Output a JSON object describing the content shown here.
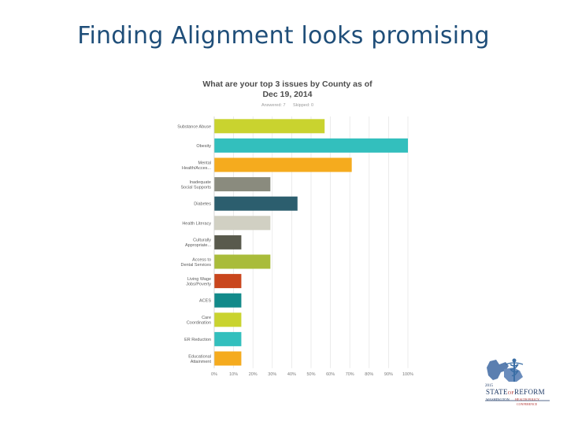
{
  "slide": {
    "title": "Finding Alignment looks promising"
  },
  "chart_data": {
    "type": "bar",
    "orientation": "horizontal",
    "title_lines": [
      "What are your top 3 issues by County as of",
      "Dec 19, 2014"
    ],
    "answered_label": "Answered: 7",
    "skipped_label": "Skipped: 0",
    "categories": [
      [
        "Substance Abuse"
      ],
      [
        "Obesity"
      ],
      [
        "Mental",
        "Health/Acces..."
      ],
      [
        "Inadequate",
        "Social Supports"
      ],
      [
        "Diabetes"
      ],
      [
        "Health Literacy"
      ],
      [
        "Culturally",
        "Appropriate..."
      ],
      [
        "Access to",
        "Dental Services"
      ],
      [
        "Living Wage",
        "Jobs/Poverty"
      ],
      [
        "ACES"
      ],
      [
        "Care",
        "Coordination"
      ],
      [
        "ER Reduction"
      ],
      [
        "Educational",
        "Attainment"
      ]
    ],
    "values": [
      57,
      100,
      71,
      29,
      43,
      29,
      14,
      29,
      14,
      14,
      14,
      14,
      14
    ],
    "colors": [
      "#c9d32f",
      "#33bfbd",
      "#f5ab1e",
      "#8a8b7e",
      "#2c5e6e",
      "#d1d0c3",
      "#595a4d",
      "#a9bc3a",
      "#c9461d",
      "#128a8a",
      "#c9d32f",
      "#33bfbd",
      "#f5ab1e"
    ],
    "xticks": [
      "0%",
      "10%",
      "20%",
      "30%",
      "40%",
      "50%",
      "60%",
      "70%",
      "80%",
      "90%",
      "100%"
    ],
    "xlim": [
      0,
      100
    ],
    "grid": true
  },
  "logo": {
    "year": "2015",
    "name_left": "STATE",
    "name_of": "OF",
    "name_right": "REFORM",
    "sub_left": "WASHINGTON",
    "sub_right_1": "HEALTH POLICY",
    "sub_right_2": "CONFERENCE"
  }
}
